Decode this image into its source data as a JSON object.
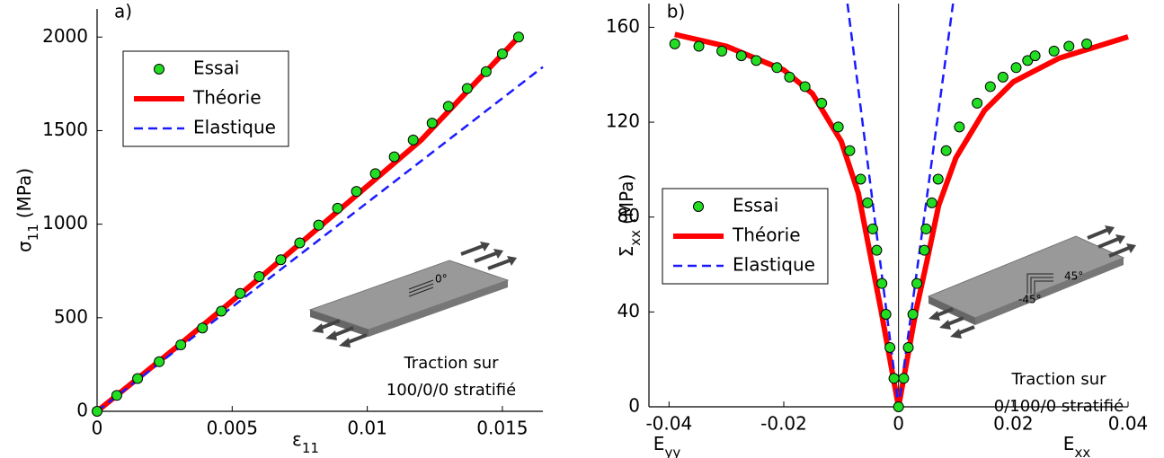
{
  "chart_data": [
    {
      "type": "line",
      "panel_label": "a)",
      "ylabel": {
        "symbol": "σ",
        "sub": "11",
        "unit": "(MPa)"
      },
      "xlabels": [
        {
          "symbol": "ε",
          "sub": "11"
        }
      ],
      "xlim": [
        0,
        0.0165
      ],
      "ylim": [
        0,
        2150
      ],
      "xticks": [
        0,
        0.005,
        0.01,
        0.015
      ],
      "yticks": [
        0,
        500,
        1000,
        1500,
        2000
      ],
      "legend": "upper left",
      "series": [
        {
          "name": "Essai",
          "style": "markers",
          "color": "#22dd22",
          "x": [
            0,
            0.00073,
            0.0015,
            0.0023,
            0.0031,
            0.0039,
            0.0046,
            0.0053,
            0.006,
            0.0068,
            0.0075,
            0.0082,
            0.0089,
            0.0096,
            0.0103,
            0.011,
            0.0117,
            0.0124,
            0.013,
            0.0137,
            0.0144,
            0.015,
            0.0156
          ],
          "values": [
            0,
            85,
            175,
            265,
            355,
            445,
            535,
            630,
            720,
            810,
            900,
            995,
            1085,
            1175,
            1270,
            1360,
            1450,
            1540,
            1630,
            1725,
            1815,
            1910,
            2000
          ]
        },
        {
          "name": "Théorie",
          "style": "solid",
          "color": "#ff0000",
          "x": [
            0,
            0.003,
            0.006,
            0.009,
            0.012,
            0.0156
          ],
          "values": [
            0,
            350,
            710,
            1080,
            1450,
            2000
          ]
        },
        {
          "name": "Elastique",
          "style": "dashed",
          "color": "#1a1aff",
          "x": [
            0,
            0.0165
          ],
          "values": [
            0,
            1840
          ]
        }
      ],
      "inset_label": "0°",
      "annotation": [
        "Traction sur",
        "100/0/0 stratifié"
      ]
    },
    {
      "type": "line",
      "panel_label": "b)",
      "ylabel": {
        "symbol": "Σ",
        "sub": "xx",
        "unit": "(MPa)"
      },
      "xlabels": [
        {
          "symbol": "E",
          "sub": "yy"
        },
        {
          "symbol": "E",
          "sub": "xx"
        }
      ],
      "xlim": [
        -0.0435,
        0.04
      ],
      "ylim": [
        0,
        170
      ],
      "xticks": [
        -0.04,
        -0.02,
        0,
        0.02,
        0.04
      ],
      "yticks": [
        0,
        40,
        80,
        120,
        160
      ],
      "zero_line": true,
      "legend": "center left",
      "series": [
        {
          "name": "Essai",
          "style": "markers",
          "color": "#22dd22",
          "x": [
            -0.039,
            -0.0348,
            -0.0308,
            -0.0274,
            -0.0248,
            -0.0212,
            -0.019,
            -0.0163,
            -0.0134,
            -0.0105,
            -0.0085,
            -0.0066,
            -0.0054,
            -0.0045,
            -0.0038,
            -0.0029,
            -0.0022,
            -0.0015,
            -0.0008,
            0,
            0.0009,
            0.0017,
            0.0025,
            0.0032,
            0.0045,
            0.0048,
            0.0058,
            0.0069,
            0.0083,
            0.0106,
            0.0137,
            0.016,
            0.0182,
            0.0205,
            0.0225,
            0.0238,
            0.0271,
            0.0297,
            0.0328
          ],
          "values": [
            153,
            152,
            150,
            148,
            146,
            143,
            139,
            135,
            128,
            118,
            108,
            96,
            86,
            75,
            66,
            52,
            39,
            25,
            12,
            0,
            12,
            25,
            39,
            52,
            66,
            75,
            86,
            96,
            108,
            118,
            128,
            135,
            139,
            143,
            146,
            148,
            150,
            152,
            153
          ]
        },
        {
          "name": "Théorie",
          "style": "solid",
          "color": "#ff0000",
          "x": [
            -0.039,
            -0.03,
            -0.02,
            -0.015,
            -0.01,
            -0.007,
            -0.005,
            -0.003,
            -0.0015,
            0,
            0.0015,
            0.003,
            0.005,
            0.007,
            0.01,
            0.015,
            0.02,
            0.028,
            0.04
          ],
          "values": [
            157,
            152,
            142,
            132,
            112,
            90,
            65,
            40,
            20,
            0,
            20,
            40,
            62,
            85,
            105,
            125,
            137,
            147,
            156
          ]
        },
        {
          "name": "Elastique",
          "style": "dashed",
          "color": "#1a1aff",
          "x": [
            -0.0089,
            0,
            0.0095
          ],
          "values": [
            170,
            0,
            170
          ]
        }
      ],
      "inset_labels": [
        "45°",
        "-45°"
      ],
      "annotation": [
        "Traction sur",
        "0/100/0 stratifié"
      ]
    }
  ]
}
